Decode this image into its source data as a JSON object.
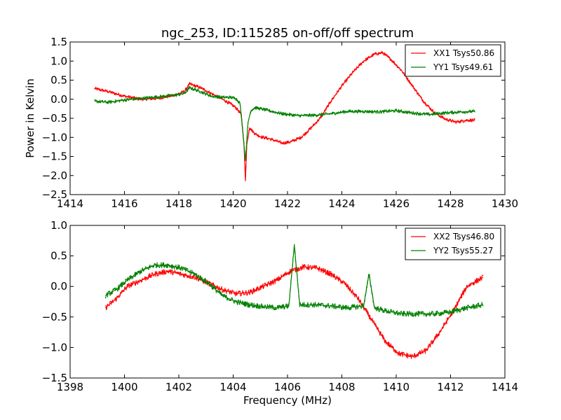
{
  "chart_data": [
    {
      "type": "line",
      "title": "ngc_253, ID:115285 on-off/off spectrum",
      "xlabel": "",
      "ylabel": "Power in Kelvin",
      "xlim": [
        1414,
        1430
      ],
      "ylim": [
        -2.5,
        1.5
      ],
      "x_ticks": [
        "1414",
        "1416",
        "1418",
        "1420",
        "1422",
        "1424",
        "1426",
        "1428",
        "1430"
      ],
      "y_ticks": [
        "−2.5",
        "−2.0",
        "−1.5",
        "−1.0",
        "−0.5",
        "0.0",
        "0.5",
        "1.0",
        "1.5"
      ],
      "legend": "top-right",
      "grid": false,
      "series": [
        {
          "name": "XX1 Tsys50.86",
          "color": "#ff0000",
          "x": [
            1414.9,
            1415.4,
            1416,
            1416.6,
            1417.2,
            1417.8,
            1418.2,
            1418.4,
            1418.8,
            1419.2,
            1419.6,
            1419.9,
            1420.1,
            1420.3,
            1420.4,
            1420.45,
            1420.5,
            1420.6,
            1420.8,
            1421,
            1421.4,
            1421.8,
            1422.1,
            1422.5,
            1422.8,
            1423.2,
            1423.6,
            1424,
            1424.4,
            1424.8,
            1425.2,
            1425.5,
            1425.8,
            1426.2,
            1426.6,
            1427,
            1427.4,
            1427.8,
            1428.2,
            1428.6,
            1428.9
          ],
          "y": [
            0.28,
            0.2,
            0.08,
            0.0,
            0.02,
            0.1,
            0.2,
            0.4,
            0.3,
            0.15,
            0.0,
            -0.12,
            -0.22,
            -0.4,
            -1.2,
            -2.15,
            -1.2,
            -0.75,
            -0.9,
            -0.98,
            -1.05,
            -1.15,
            -1.12,
            -1.0,
            -0.8,
            -0.5,
            -0.05,
            0.35,
            0.7,
            1.0,
            1.18,
            1.22,
            1.05,
            0.75,
            0.35,
            -0.05,
            -0.35,
            -0.52,
            -0.6,
            -0.55,
            -0.55
          ]
        },
        {
          "name": "YY1 Tsys49.61",
          "color": "#008000",
          "x": [
            1414.9,
            1415.4,
            1416,
            1416.6,
            1417.2,
            1417.8,
            1418.2,
            1418.4,
            1418.8,
            1419.2,
            1419.6,
            1419.9,
            1420.1,
            1420.25,
            1420.35,
            1420.45,
            1420.55,
            1420.65,
            1420.8,
            1421.2,
            1421.8,
            1422.4,
            1423,
            1423.6,
            1424.2,
            1424.8,
            1425.4,
            1426,
            1426.6,
            1427.2,
            1427.8,
            1428.4,
            1428.9
          ],
          "y": [
            -0.05,
            -0.08,
            -0.02,
            0.02,
            0.06,
            0.1,
            0.15,
            0.3,
            0.2,
            0.08,
            0.05,
            0.05,
            0.02,
            -0.1,
            -0.8,
            -1.6,
            -0.6,
            -0.3,
            -0.22,
            -0.28,
            -0.38,
            -0.43,
            -0.42,
            -0.38,
            -0.32,
            -0.32,
            -0.33,
            -0.3,
            -0.36,
            -0.4,
            -0.36,
            -0.33,
            -0.32
          ]
        }
      ]
    },
    {
      "type": "line",
      "title": "",
      "xlabel": "Frequency (MHz)",
      "ylabel": "",
      "xlim": [
        1398,
        1414
      ],
      "ylim": [
        -1.5,
        1.0
      ],
      "x_ticks": [
        "1398",
        "1400",
        "1402",
        "1404",
        "1406",
        "1408",
        "1410",
        "1412",
        "1414"
      ],
      "y_ticks": [
        "−1.5",
        "−1.0",
        "−0.5",
        "0.0",
        "0.5",
        "1.0"
      ],
      "legend": "top-right",
      "grid": false,
      "series": [
        {
          "name": "XX2 Tsys46.80",
          "color": "#ff0000",
          "x": [
            1399.3,
            1399.7,
            1400.1,
            1400.6,
            1401.1,
            1401.6,
            1402.1,
            1402.6,
            1403.1,
            1403.6,
            1404.1,
            1404.6,
            1405.1,
            1405.6,
            1406.1,
            1406.6,
            1407.1,
            1407.6,
            1408.1,
            1408.6,
            1409.1,
            1409.6,
            1410.1,
            1410.6,
            1411.1,
            1411.6,
            1412.1,
            1412.6,
            1413.2
          ],
          "y": [
            -0.35,
            -0.2,
            0.0,
            0.1,
            0.2,
            0.25,
            0.2,
            0.15,
            0.05,
            -0.05,
            -0.12,
            -0.1,
            0.0,
            0.1,
            0.25,
            0.32,
            0.3,
            0.2,
            0.05,
            -0.2,
            -0.55,
            -0.9,
            -1.1,
            -1.15,
            -1.05,
            -0.75,
            -0.4,
            0.0,
            0.15
          ]
        },
        {
          "name": "YY2 Tsys55.27",
          "color": "#008000",
          "x": [
            1399.3,
            1399.7,
            1400.1,
            1400.6,
            1401.1,
            1401.6,
            1402.1,
            1402.6,
            1403.1,
            1403.6,
            1404.1,
            1404.6,
            1405.1,
            1405.6,
            1406.05,
            1406.25,
            1406.45,
            1407,
            1407.6,
            1408.2,
            1408.8,
            1409.0,
            1409.2,
            1409.6,
            1410.2,
            1410.8,
            1411.4,
            1412,
            1412.6,
            1413.2
          ],
          "y": [
            -0.15,
            -0.05,
            0.1,
            0.25,
            0.35,
            0.35,
            0.3,
            0.2,
            0.05,
            -0.15,
            -0.25,
            -0.3,
            -0.33,
            -0.35,
            -0.32,
            0.68,
            -0.3,
            -0.3,
            -0.32,
            -0.35,
            -0.32,
            0.2,
            -0.35,
            -0.4,
            -0.45,
            -0.45,
            -0.45,
            -0.42,
            -0.35,
            -0.3
          ]
        }
      ]
    }
  ]
}
